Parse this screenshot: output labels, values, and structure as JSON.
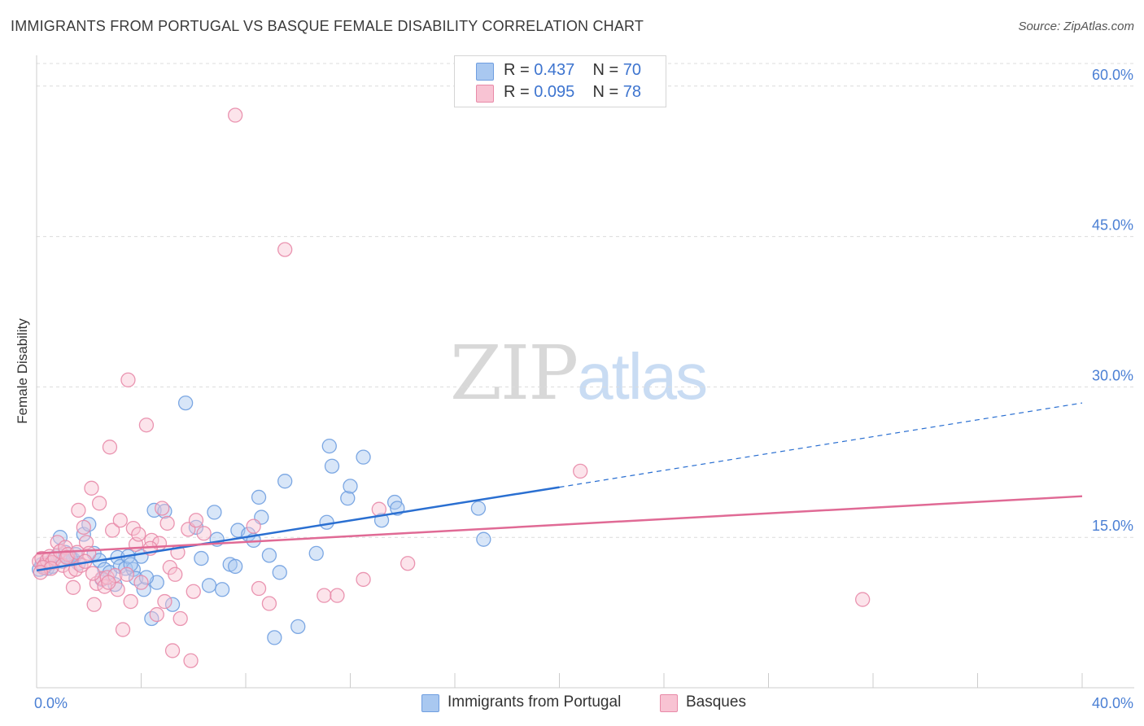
{
  "header": {
    "title": "IMMIGRANTS FROM PORTUGAL VS BASQUE FEMALE DISABILITY CORRELATION CHART",
    "source": "Source: ZipAtlas.com"
  },
  "watermark": {
    "zip": "ZIP",
    "atlas": "atlas"
  },
  "legend": {
    "rows": [
      {
        "r_label": "R =",
        "r_value": "0.437",
        "n_label": "N =",
        "n_value": "70",
        "color": "#a9c8f0",
        "border": "#6f9ee0"
      },
      {
        "r_label": "R =",
        "r_value": "0.095",
        "n_label": "N =",
        "n_value": "78",
        "color": "#f8c3d3",
        "border": "#e88aa8"
      }
    ]
  },
  "chart_data": {
    "type": "scatter",
    "title": "IMMIGRANTS FROM PORTUGAL VS BASQUE FEMALE DISABILITY CORRELATION CHART",
    "xlabel": "",
    "ylabel": "Female Disability",
    "xlim": [
      0,
      40
    ],
    "ylim": [
      0,
      62.5
    ],
    "x_ticks": [
      "0.0%",
      "40.0%"
    ],
    "y_ticks": [
      {
        "value": 15,
        "label": "15.0%"
      },
      {
        "value": 30,
        "label": "30.0%"
      },
      {
        "value": 45,
        "label": "45.0%"
      },
      {
        "value": 60,
        "label": "60.0%"
      }
    ],
    "grid": "horizontal-dashed",
    "legend_position": "top-center",
    "series": [
      {
        "name": "Immigrants from Portugal",
        "color": "#6f9ee0",
        "fill": "#a9c8f0",
        "trend": {
          "x0": 0,
          "y0": 11.7,
          "x1": 20,
          "y1": 20.0,
          "dashed_to_x": 40,
          "dashed_to_y": 28.4,
          "color": "#2a6fd1"
        },
        "points": [
          [
            0.1,
            11.8
          ],
          [
            0.2,
            12.3
          ],
          [
            0.3,
            12.0
          ],
          [
            0.4,
            11.9
          ],
          [
            0.5,
            12.5
          ],
          [
            0.6,
            12.1
          ],
          [
            0.8,
            13.2
          ],
          [
            0.9,
            15.0
          ],
          [
            1.0,
            12.6
          ],
          [
            1.1,
            13.5
          ],
          [
            1.2,
            13.0
          ],
          [
            1.4,
            12.8
          ],
          [
            1.5,
            13.3
          ],
          [
            1.6,
            12.4
          ],
          [
            1.8,
            15.3
          ],
          [
            2.0,
            16.3
          ],
          [
            2.2,
            13.4
          ],
          [
            2.4,
            12.7
          ],
          [
            2.6,
            11.8
          ],
          [
            2.8,
            11.5
          ],
          [
            3.0,
            10.3
          ],
          [
            3.1,
            13.0
          ],
          [
            3.2,
            12.1
          ],
          [
            3.4,
            11.9
          ],
          [
            3.5,
            13.1
          ],
          [
            3.7,
            11.8
          ],
          [
            3.8,
            10.9
          ],
          [
            4.0,
            13.1
          ],
          [
            4.1,
            9.8
          ],
          [
            4.4,
            6.9
          ],
          [
            4.5,
            17.7
          ],
          [
            4.6,
            10.5
          ],
          [
            4.9,
            17.6
          ],
          [
            5.2,
            8.3
          ],
          [
            5.7,
            28.4
          ],
          [
            6.1,
            16.0
          ],
          [
            6.6,
            10.2
          ],
          [
            6.8,
            17.5
          ],
          [
            6.9,
            14.8
          ],
          [
            7.1,
            9.8
          ],
          [
            7.4,
            12.3
          ],
          [
            7.6,
            12.1
          ],
          [
            7.7,
            15.7
          ],
          [
            8.1,
            15.3
          ],
          [
            8.3,
            14.7
          ],
          [
            8.5,
            19.0
          ],
          [
            8.6,
            17.0
          ],
          [
            8.9,
            13.2
          ],
          [
            9.1,
            5.0
          ],
          [
            9.3,
            11.5
          ],
          [
            9.5,
            20.6
          ],
          [
            10.0,
            6.1
          ],
          [
            10.7,
            13.4
          ],
          [
            11.1,
            16.5
          ],
          [
            11.2,
            24.1
          ],
          [
            11.3,
            22.1
          ],
          [
            11.9,
            18.9
          ],
          [
            12.0,
            20.1
          ],
          [
            12.5,
            23.0
          ],
          [
            13.2,
            16.7
          ],
          [
            13.7,
            18.5
          ],
          [
            13.8,
            17.9
          ],
          [
            16.9,
            17.9
          ],
          [
            17.1,
            14.8
          ],
          [
            0.35,
            12.2
          ],
          [
            1.3,
            12.9
          ],
          [
            2.5,
            10.8
          ],
          [
            3.6,
            12.3
          ],
          [
            4.2,
            11.0
          ],
          [
            6.3,
            12.9
          ]
        ]
      },
      {
        "name": "Basques",
        "color": "#e88aa8",
        "fill": "#f8c3d3",
        "trend": {
          "x0": 0,
          "y0": 13.4,
          "x1": 40,
          "y1": 19.1,
          "color": "#e06a95"
        },
        "points": [
          [
            0.1,
            12.6
          ],
          [
            0.2,
            12.9
          ],
          [
            0.3,
            12.2
          ],
          [
            0.4,
            12.7
          ],
          [
            0.5,
            13.1
          ],
          [
            0.6,
            12.5
          ],
          [
            0.7,
            12.9
          ],
          [
            0.8,
            14.5
          ],
          [
            0.9,
            13.6
          ],
          [
            1.0,
            12.2
          ],
          [
            1.1,
            14.0
          ],
          [
            1.2,
            13.3
          ],
          [
            1.3,
            11.6
          ],
          [
            1.4,
            10.0
          ],
          [
            1.5,
            11.8
          ],
          [
            1.6,
            17.7
          ],
          [
            1.7,
            12.2
          ],
          [
            1.8,
            16.0
          ],
          [
            1.9,
            14.5
          ],
          [
            2.0,
            13.4
          ],
          [
            2.1,
            19.9
          ],
          [
            2.2,
            8.3
          ],
          [
            2.3,
            10.4
          ],
          [
            2.4,
            18.4
          ],
          [
            2.5,
            10.9
          ],
          [
            2.6,
            10.1
          ],
          [
            2.7,
            11.0
          ],
          [
            2.8,
            24.0
          ],
          [
            2.9,
            15.7
          ],
          [
            3.0,
            11.2
          ],
          [
            3.1,
            9.8
          ],
          [
            3.2,
            16.7
          ],
          [
            3.3,
            5.8
          ],
          [
            3.5,
            30.7
          ],
          [
            3.6,
            8.6
          ],
          [
            3.7,
            15.9
          ],
          [
            3.8,
            14.3
          ],
          [
            3.9,
            15.3
          ],
          [
            4.0,
            10.5
          ],
          [
            4.2,
            26.2
          ],
          [
            4.4,
            14.7
          ],
          [
            4.6,
            7.3
          ],
          [
            4.7,
            14.4
          ],
          [
            4.8,
            17.9
          ],
          [
            4.9,
            8.6
          ],
          [
            5.0,
            16.4
          ],
          [
            5.1,
            12.0
          ],
          [
            5.2,
            3.7
          ],
          [
            5.3,
            11.3
          ],
          [
            5.4,
            13.5
          ],
          [
            5.5,
            6.9
          ],
          [
            5.8,
            15.8
          ],
          [
            5.9,
            2.7
          ],
          [
            6.0,
            9.6
          ],
          [
            6.1,
            16.7
          ],
          [
            6.4,
            15.4
          ],
          [
            7.6,
            57.1
          ],
          [
            8.3,
            16.1
          ],
          [
            8.5,
            9.9
          ],
          [
            8.9,
            8.4
          ],
          [
            9.5,
            43.7
          ],
          [
            11.0,
            9.2
          ],
          [
            11.5,
            9.2
          ],
          [
            12.5,
            10.8
          ],
          [
            13.1,
            17.8
          ],
          [
            14.2,
            12.4
          ],
          [
            20.8,
            21.6
          ],
          [
            31.6,
            8.8
          ],
          [
            0.25,
            12.0
          ],
          [
            1.15,
            13.0
          ],
          [
            2.15,
            11.4
          ],
          [
            0.55,
            11.9
          ],
          [
            1.55,
            13.5
          ],
          [
            2.75,
            10.5
          ],
          [
            3.45,
            11.3
          ],
          [
            0.15,
            11.5
          ],
          [
            1.85,
            12.6
          ],
          [
            4.35,
            13.9
          ]
        ]
      }
    ]
  },
  "bottom_legend": [
    {
      "label": "Immigrants from Portugal",
      "color": "#a9c8f0",
      "border": "#6f9ee0"
    },
    {
      "label": "Basques",
      "color": "#f8c3d3",
      "border": "#e88aa8"
    }
  ]
}
